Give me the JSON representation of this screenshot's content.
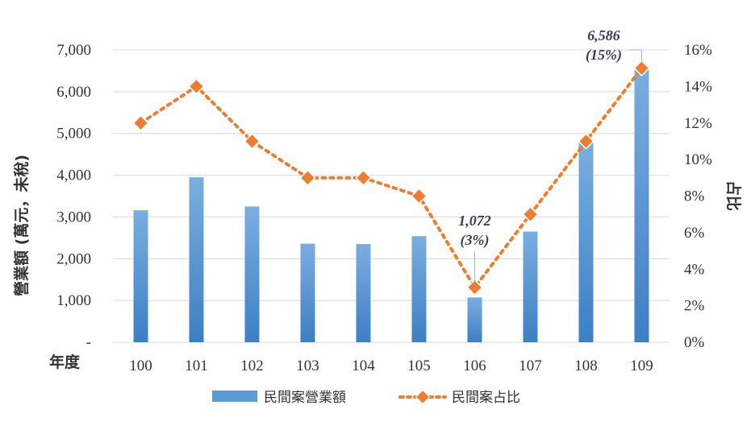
{
  "chart_data": {
    "type": "bar",
    "x_label": "年度",
    "categories": [
      "100",
      "101",
      "102",
      "103",
      "104",
      "105",
      "106",
      "107",
      "108",
      "109"
    ],
    "series": [
      {
        "name": "民間案營業額",
        "type": "bar",
        "axis": "left",
        "color": "#5b9bd5",
        "values": [
          3160,
          3950,
          3250,
          2360,
          2350,
          2540,
          1072,
          2650,
          4820,
          6586
        ]
      },
      {
        "name": "民間案占比",
        "type": "line",
        "axis": "right",
        "color": "#ed7d31",
        "values": [
          12,
          14,
          11,
          9,
          9,
          8,
          3,
          7,
          11,
          15
        ]
      }
    ],
    "left_axis": {
      "label": "營業額 (萬元，未稅)",
      "ylim": [
        0,
        7000
      ],
      "ticks": [
        "-",
        "1,000",
        "2,000",
        "3,000",
        "4,000",
        "5,000",
        "6,000",
        "7,000"
      ]
    },
    "right_axis": {
      "label": "占比",
      "ylim": [
        0,
        16
      ],
      "ticks": [
        "0%",
        "2%",
        "4%",
        "6%",
        "8%",
        "10%",
        "12%",
        "14%",
        "16%"
      ]
    },
    "annotations": [
      {
        "category": "106",
        "lines": [
          "1,072",
          "(3%)"
        ]
      },
      {
        "category": "109",
        "lines": [
          "6,586",
          "(15%)"
        ]
      }
    ],
    "grid": "horizontal",
    "legend_position": "bottom"
  }
}
